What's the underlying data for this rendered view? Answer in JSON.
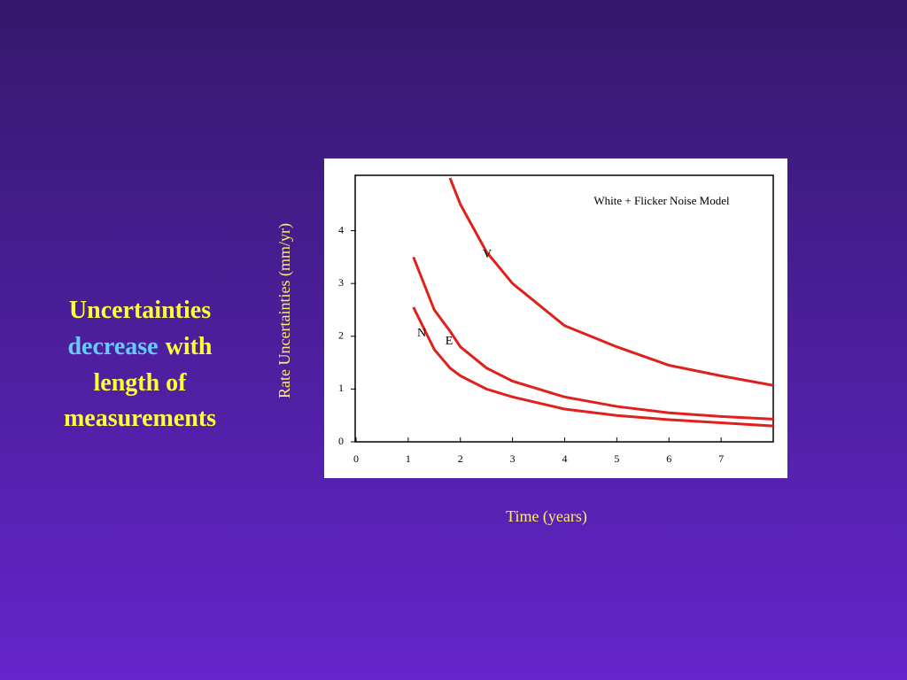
{
  "slide": {
    "lines": [
      [
        "Uncertainties"
      ],
      [
        "decrease",
        "with"
      ],
      [
        "length of"
      ],
      [
        "measurements"
      ]
    ]
  },
  "chart_data": {
    "type": "line",
    "annotation": "White + Flicker Noise Model",
    "y_label": "Rate Uncertainties (mm/yr)",
    "x_label": "Time (years)",
    "x": [
      1.1,
      1.5,
      1.8,
      2,
      2.5,
      3,
      4,
      5,
      6,
      7,
      8
    ],
    "series": [
      {
        "name": "V",
        "color": "#e0201c",
        "values": [
          null,
          null,
          5.0,
          4.5,
          3.6,
          3.0,
          2.2,
          1.8,
          1.45,
          1.25,
          1.07
        ]
      },
      {
        "name": "E",
        "color": "#e0201c",
        "values": [
          3.5,
          2.5,
          2.1,
          1.8,
          1.4,
          1.15,
          0.85,
          0.67,
          0.55,
          0.48,
          0.43
        ]
      },
      {
        "name": "N",
        "color": "#e0201c",
        "values": [
          2.55,
          1.75,
          1.4,
          1.25,
          1.0,
          0.85,
          0.62,
          0.5,
          0.42,
          0.36,
          0.3
        ]
      }
    ],
    "xlim": [
      0,
      8
    ],
    "ylim": [
      0,
      5.05
    ],
    "xticks": [
      0,
      1,
      2,
      3,
      4,
      5,
      6,
      7
    ],
    "yticks": [
      0,
      1,
      2,
      3,
      4
    ]
  }
}
